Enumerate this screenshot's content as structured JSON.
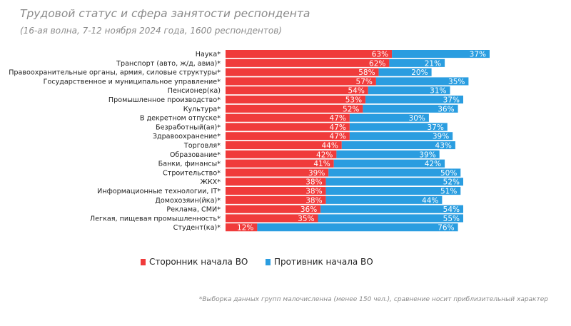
{
  "title": "Трудовой статус и сфера занятости респондента",
  "subtitle": "(16-ая волна, 7-12 ноября 2024 года, 1600 респондентов)",
  "footnote": "*Выборка данных групп малочисленна (менее 150 чел.), сравнение носит приблизительный характер",
  "colors": {
    "support": "#f03b3b",
    "oppose": "#2a9de0"
  },
  "chart_data": {
    "type": "bar",
    "orientation": "horizontal-stacked",
    "categories": [
      "Наука*",
      "Транспорт (авто, ж/д, авиа)*",
      "Правоохранительные органы, армия, силовые структуры*",
      "Государственное и муниципальное управление*",
      "Пенсионер(ка)",
      "Промышленное производство*",
      "Культура*",
      "В декретном отпуске*",
      "Безработный(ая)*",
      "Здравоохранение*",
      "Торговля*",
      "Образование*",
      "Банки, финансы*",
      "Строительство*",
      "ЖКХ*",
      "Информационные технологии, IT*",
      "Домохозяин(йка)*",
      "Реклама, СМИ*",
      "Легкая, пищевая промышленность*",
      "Студент(ка)*"
    ],
    "series": [
      {
        "name": "Сторонник начала ВО",
        "values": [
          63,
          62,
          58,
          57,
          54,
          53,
          52,
          47,
          47,
          47,
          44,
          42,
          41,
          39,
          38,
          38,
          38,
          36,
          35,
          12
        ]
      },
      {
        "name": "Противник начала ВО",
        "values": [
          37,
          21,
          20,
          35,
          31,
          37,
          36,
          30,
          37,
          39,
          43,
          39,
          42,
          50,
          52,
          51,
          44,
          54,
          55,
          76
        ]
      }
    ],
    "legend": "bottom"
  }
}
